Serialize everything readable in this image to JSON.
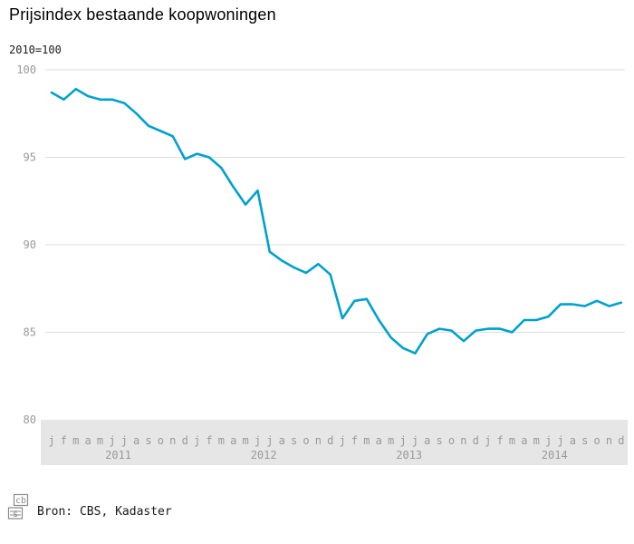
{
  "page": {
    "title": "Prijsindex bestaande koopwoningen",
    "unit_label": "2010=100"
  },
  "footer": {
    "source_text": "Bron: CBS, Kadaster",
    "logo_name": "cbs-logo"
  },
  "chart_data": {
    "type": "line",
    "title": "Prijsindex bestaande koopwoningen",
    "subtitle": "2010=100",
    "ylabel": "2010=100",
    "ylim": [
      80,
      100
    ],
    "yticks": [
      100,
      95,
      90,
      85,
      80
    ],
    "grid": "horizontal",
    "legend": "none",
    "month_letters": [
      "j",
      "f",
      "m",
      "a",
      "m",
      "j",
      "j",
      "a",
      "s",
      "o",
      "n",
      "d"
    ],
    "years": [
      "2011",
      "2012",
      "2013",
      "2014"
    ],
    "colors": {
      "line": "#00a1cd",
      "grid": "#dddddd",
      "axis_band": "#e6e6e6",
      "axis_text": "#999999"
    },
    "series": [
      {
        "name": "Prijsindex bestaande koopwoningen (2010=100)",
        "values": [
          98.7,
          98.3,
          98.9,
          98.5,
          98.3,
          98.3,
          98.1,
          97.5,
          96.8,
          96.5,
          96.2,
          94.9,
          95.2,
          95.0,
          94.4,
          93.3,
          92.3,
          93.1,
          89.6,
          89.1,
          88.7,
          88.4,
          88.9,
          88.3,
          85.8,
          86.8,
          86.9,
          85.7,
          84.7,
          84.1,
          83.8,
          84.9,
          85.2,
          85.1,
          84.5,
          85.1,
          85.2,
          85.2,
          85.0,
          85.7,
          85.7,
          85.9,
          86.6,
          86.6,
          86.5,
          86.8,
          86.5,
          86.7
        ]
      }
    ]
  }
}
